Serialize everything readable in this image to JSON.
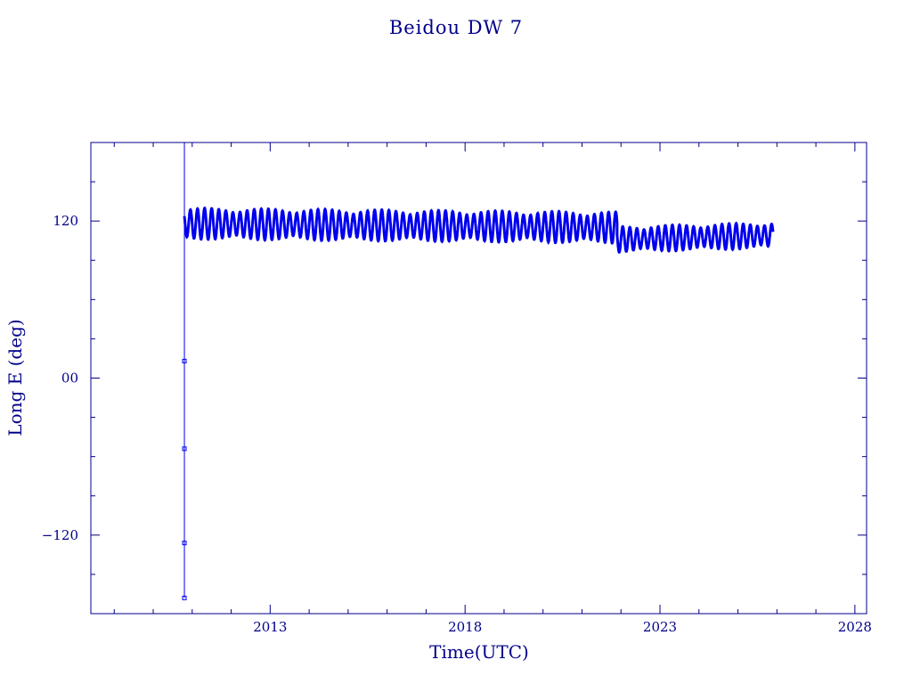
{
  "chart_data": {
    "type": "scatter",
    "title": "Beidou DW 7",
    "xlabel": "Time(UTC)",
    "ylabel": "Long E (deg)",
    "xlim": [
      2008.4,
      2028.3
    ],
    "ylim": [
      -180,
      180
    ],
    "x_ticks": [
      2013,
      2018,
      2023,
      2028
    ],
    "x_tick_labels": [
      "2013",
      "2018",
      "2023",
      "2028"
    ],
    "y_ticks": [
      -120,
      0,
      120
    ],
    "y_tick_labels": [
      "−120",
      "00",
      "120"
    ],
    "grid": false,
    "legend": "none",
    "color": "#0000ee",
    "axis_color": "#00008b",
    "series": [
      {
        "kind": "initial-points",
        "points": [
          {
            "x": 2010.8,
            "y": 13
          },
          {
            "x": 2010.8,
            "y": -54
          },
          {
            "x": 2010.8,
            "y": -126
          },
          {
            "x": 2010.8,
            "y": -168
          }
        ]
      },
      {
        "kind": "oscillating-band",
        "segments": [
          {
            "x_start": 2010.8,
            "x_end": 2021.9,
            "y_center_start": 118,
            "y_center_end": 115,
            "amplitude": 12
          },
          {
            "x_start": 2021.9,
            "x_end": 2025.9,
            "y_center_start": 106,
            "y_center_end": 109,
            "amplitude": 10
          }
        ]
      }
    ]
  }
}
